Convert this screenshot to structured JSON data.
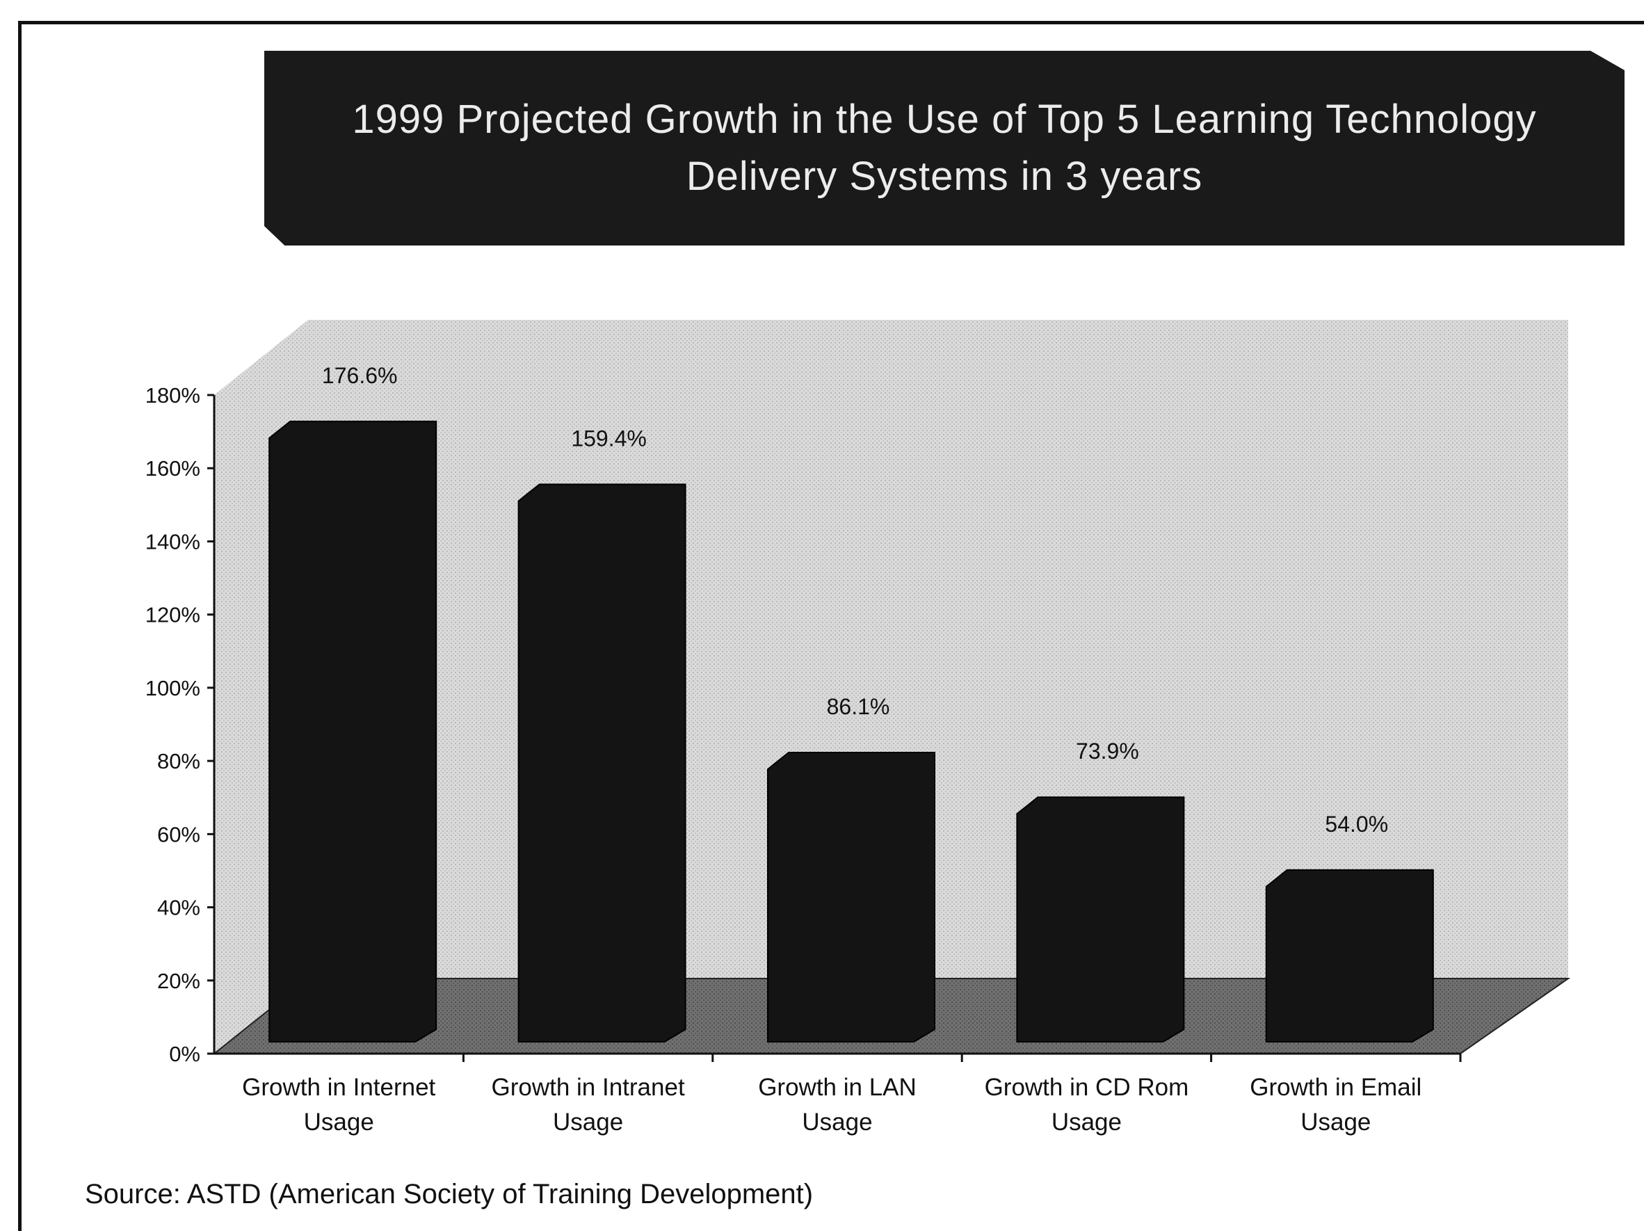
{
  "chart_data": {
    "type": "bar",
    "title": "1999 Projected Growth in the Use of Top 5 Learning Technology Delivery Systems in 3 years",
    "categories": [
      [
        "Growth in Internet",
        "Usage"
      ],
      [
        "Growth in Intranet",
        "Usage"
      ],
      [
        "Growth in LAN",
        "Usage"
      ],
      [
        "Growth in CD Rom",
        "Usage"
      ],
      [
        "Growth in Email",
        "Usage"
      ]
    ],
    "values": [
      176.6,
      159.4,
      86.1,
      73.9,
      54.0
    ],
    "data_labels": [
      "176.6%",
      "159.4%",
      "86.1%",
      "73.9%",
      "54.0%"
    ],
    "yticks": [
      "0%",
      "20%",
      "40%",
      "60%",
      "80%",
      "100%",
      "120%",
      "140%",
      "160%",
      "180%"
    ],
    "ylim": [
      0,
      180
    ],
    "xlabel": "",
    "ylabel": "",
    "style": "3d-column",
    "colors": {
      "bar": "#141414",
      "wall": "#d6d6d6",
      "floor": "#6a6a6a",
      "banner": "#1a1a1a"
    }
  },
  "source": "Source: ASTD (American Society of Training Development)"
}
